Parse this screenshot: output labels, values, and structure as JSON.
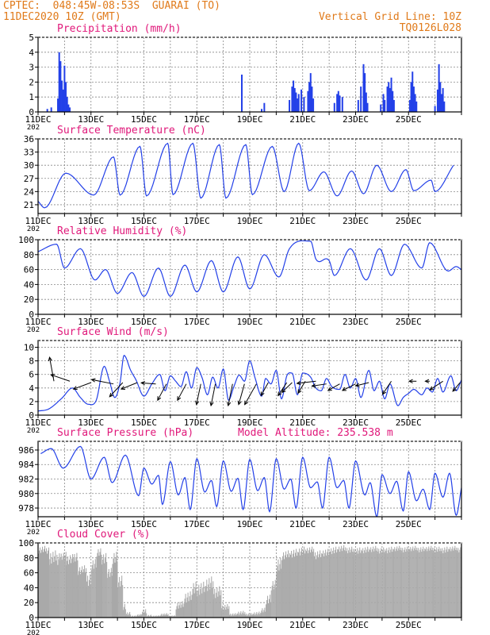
{
  "header": {
    "line1": "CPTEC:  048:45W-08:53S  GUARAI (TO)",
    "line2": "11DEC2020 10Z (GMT)",
    "grid_note": "Vertical Grid Line: 10Z",
    "code": "TQ0126L028"
  },
  "colors": {
    "header": "#e07a1a",
    "title": "#e0187a",
    "series": "#2340e8",
    "cloud": "#a9a9a9",
    "grid": "#888888"
  },
  "x_labels": [
    "11DEC",
    "13DEC",
    "15DEC",
    "17DEC",
    "19DEC",
    "21DEC",
    "23DEC",
    "25DEC"
  ],
  "x_sub": "202",
  "chart_data": [
    {
      "id": "precip",
      "type": "bar",
      "title": "Precipitation (mm/h)",
      "ylim": [
        0,
        5
      ],
      "yticks": [
        "0",
        "1",
        "2",
        "3",
        "4",
        "5"
      ],
      "x_unit": "days since 11DEC2020 10Z",
      "events": [
        [
          0.35,
          0.2
        ],
        [
          0.5,
          0.3
        ],
        [
          0.75,
          0.9
        ],
        [
          0.8,
          4.0
        ],
        [
          0.85,
          3.4
        ],
        [
          0.9,
          2.1
        ],
        [
          0.95,
          1.5
        ],
        [
          1.0,
          3.1
        ],
        [
          1.05,
          2.0
        ],
        [
          1.1,
          1.0
        ],
        [
          1.15,
          0.5
        ],
        [
          1.2,
          0.3
        ],
        [
          7.7,
          2.5
        ],
        [
          8.45,
          0.2
        ],
        [
          8.55,
          0.6
        ],
        [
          9.5,
          0.8
        ],
        [
          9.6,
          1.7
        ],
        [
          9.65,
          2.1
        ],
        [
          9.7,
          1.6
        ],
        [
          9.75,
          1.3
        ],
        [
          9.8,
          0.9
        ],
        [
          9.85,
          1.2
        ],
        [
          9.95,
          1.5
        ],
        [
          10.05,
          1.0
        ],
        [
          10.2,
          1.4
        ],
        [
          10.25,
          2.0
        ],
        [
          10.3,
          2.6
        ],
        [
          10.35,
          1.7
        ],
        [
          10.4,
          0.9
        ],
        [
          11.2,
          0.6
        ],
        [
          11.3,
          1.2
        ],
        [
          11.35,
          1.4
        ],
        [
          11.4,
          1.1
        ],
        [
          11.5,
          1.0
        ],
        [
          12.1,
          0.8
        ],
        [
          12.2,
          1.7
        ],
        [
          12.3,
          3.2
        ],
        [
          12.35,
          2.6
        ],
        [
          12.4,
          1.3
        ],
        [
          12.45,
          0.6
        ],
        [
          12.95,
          0.5
        ],
        [
          13.05,
          1.2
        ],
        [
          13.1,
          0.8
        ],
        [
          13.2,
          1.7
        ],
        [
          13.25,
          2.0
        ],
        [
          13.3,
          1.6
        ],
        [
          13.35,
          2.3
        ],
        [
          13.4,
          1.4
        ],
        [
          13.45,
          0.8
        ],
        [
          14.05,
          0.8
        ],
        [
          14.1,
          2.0
        ],
        [
          14.15,
          2.7
        ],
        [
          14.2,
          1.7
        ],
        [
          14.25,
          1.2
        ],
        [
          14.3,
          0.7
        ],
        [
          15.0,
          0.4
        ],
        [
          15.1,
          1.5
        ],
        [
          15.15,
          3.2
        ],
        [
          15.2,
          2.0
        ],
        [
          15.25,
          1.2
        ],
        [
          15.3,
          1.6
        ],
        [
          15.35,
          0.7
        ]
      ]
    },
    {
      "id": "temp",
      "type": "line",
      "title": "Surface Temperature (nC)",
      "ylim": [
        19,
        36
      ],
      "yticks": [
        "21",
        "24",
        "27",
        "30",
        "33",
        "36"
      ],
      "min_x": [
        0.0,
        0.25,
        2.1,
        3.1,
        4.1,
        5.1,
        6.15,
        7.1,
        8.1,
        9.3,
        10.25,
        11.3,
        12.3,
        13.35,
        14.2,
        15.0
      ],
      "min_y": [
        21.8,
        20.3,
        23.2,
        23.2,
        23.0,
        23.3,
        22.5,
        22.5,
        23.3,
        24.0,
        24.2,
        23.0,
        23.5,
        24.0,
        24.2,
        24.0
      ],
      "max_x": [
        1.05,
        2.85,
        3.85,
        4.9,
        5.85,
        6.85,
        7.85,
        8.85,
        9.85,
        10.8,
        11.85,
        12.8,
        13.9,
        14.85,
        15.7
      ],
      "max_y": [
        28.2,
        31.9,
        34.3,
        35.0,
        35.0,
        34.7,
        34.7,
        34.3,
        35.0,
        28.5,
        28.7,
        30.0,
        29.0,
        26.6,
        30.0
      ]
    },
    {
      "id": "rh",
      "type": "line",
      "title": "Relative Humidity (%)",
      "ylim": [
        0,
        100
      ],
      "yticks": [
        "0",
        "20",
        "40",
        "60",
        "80",
        "100"
      ],
      "min_x": [
        0.0,
        1.0,
        2.15,
        3.0,
        4.0,
        5.0,
        6.0,
        7.0,
        8.0,
        9.1,
        10.5,
        11.2,
        12.4,
        13.35,
        14.5,
        15.5,
        16.0
      ],
      "min_y": [
        84.0,
        62.0,
        46.0,
        28.0,
        24.0,
        24.0,
        30.0,
        30.0,
        34.0,
        50.0,
        74.0,
        52.0,
        46.0,
        52.0,
        62.0,
        58.0,
        60.0
      ],
      "max_x": [
        0.7,
        1.6,
        2.55,
        3.55,
        4.55,
        5.55,
        6.55,
        7.55,
        8.55,
        9.5,
        10.3,
        11.0,
        11.8,
        12.9,
        13.85,
        14.8,
        15.8
      ],
      "max_y": [
        94.0,
        88.0,
        60.0,
        56.0,
        62.0,
        66.0,
        72.0,
        77.0,
        80.0,
        88.0,
        98.0,
        72.0,
        88.0,
        88.0,
        94.0,
        96.0,
        64.0
      ]
    },
    {
      "id": "wind",
      "type": "line",
      "title": "Surface Wind (m/s)",
      "ylim": [
        0,
        11
      ],
      "yticks": [
        "0",
        "2",
        "4",
        "6",
        "8",
        "10"
      ],
      "speed_x": [
        0.0,
        0.4,
        0.9,
        1.3,
        1.6,
        1.9,
        2.2,
        2.5,
        2.7,
        2.9,
        3.1,
        3.25,
        3.5,
        3.7,
        4.0,
        4.3,
        4.6,
        4.8,
        5.0,
        5.2,
        5.4,
        5.6,
        5.8,
        6.0,
        6.2,
        6.4,
        6.6,
        6.8,
        7.0,
        7.2,
        7.4,
        7.6,
        7.8,
        8.0,
        8.2,
        8.45,
        8.6,
        8.8,
        9.0,
        9.2,
        9.4,
        9.6,
        9.8,
        10.0,
        10.3,
        10.5,
        10.7,
        10.9,
        11.1,
        11.4,
        11.6,
        11.8,
        12.0,
        12.2,
        12.5,
        12.7,
        12.9,
        13.1,
        13.3,
        13.6,
        13.8,
        14.0,
        14.2,
        14.5,
        14.7,
        14.9,
        15.1,
        15.3,
        15.6,
        15.8,
        16.0
      ],
      "speed_y": [
        0.6,
        0.9,
        2.5,
        4.0,
        2.6,
        1.6,
        2.2,
        7.2,
        5.0,
        2.6,
        4.8,
        8.8,
        6.6,
        5.2,
        2.8,
        4.6,
        6.0,
        3.6,
        5.8,
        5.0,
        4.2,
        6.4,
        4.0,
        7.0,
        5.5,
        3.0,
        5.6,
        4.0,
        6.8,
        2.2,
        4.2,
        5.9,
        5.0,
        8.0,
        5.5,
        2.8,
        5.4,
        4.6,
        6.6,
        2.4,
        5.8,
        6.2,
        3.0,
        6.2,
        5.6,
        4.0,
        3.6,
        5.4,
        4.2,
        3.8,
        6.0,
        4.0,
        5.4,
        2.6,
        6.6,
        3.6,
        5.0,
        2.4,
        4.6,
        1.4,
        2.6,
        3.2,
        3.8,
        3.0,
        4.0,
        3.4,
        5.4,
        3.4,
        5.8,
        3.6,
        5.2
      ],
      "arrows": [
        [
          0.6,
          5.0,
          -0.3,
          2.2
        ],
        [
          1.2,
          5.0,
          -1.3,
          0.6
        ],
        [
          2.0,
          4.8,
          -1.2,
          -0.6
        ],
        [
          2.85,
          4.6,
          -1.5,
          0.4
        ],
        [
          3.2,
          4.8,
          -0.9,
          -1.3
        ],
        [
          3.75,
          4.8,
          -1.1,
          -0.6
        ],
        [
          4.45,
          4.6,
          -1.0,
          0.1
        ],
        [
          4.85,
          4.6,
          -0.6,
          -1.5
        ],
        [
          5.6,
          4.6,
          -0.6,
          -1.5
        ],
        [
          6.15,
          4.6,
          -0.3,
          -1.9
        ],
        [
          6.7,
          4.6,
          -0.3,
          -2.0
        ],
        [
          7.35,
          4.6,
          -0.3,
          -2.0
        ],
        [
          7.8,
          4.6,
          -0.4,
          -1.9
        ],
        [
          8.25,
          4.6,
          -0.8,
          -1.9
        ],
        [
          8.7,
          4.8,
          -0.5,
          -1.2
        ],
        [
          9.4,
          4.8,
          -0.6,
          -1.2
        ],
        [
          9.6,
          4.8,
          -0.7,
          -0.9
        ],
        [
          10.1,
          5.0,
          -0.5,
          -1.1
        ],
        [
          10.5,
          5.0,
          -1.3,
          -0.2
        ],
        [
          10.9,
          4.6,
          -1.0,
          -0.2
        ],
        [
          11.4,
          4.6,
          -0.8,
          -0.6
        ],
        [
          12.0,
          4.6,
          -0.9,
          -0.6
        ],
        [
          12.5,
          4.8,
          -0.9,
          -0.3
        ],
        [
          13.35,
          5.0,
          -0.6,
          -1.2
        ],
        [
          14.3,
          5.0,
          -0.5,
          0.0
        ],
        [
          14.8,
          5.0,
          -0.3,
          0.0
        ],
        [
          15.3,
          5.0,
          -0.9,
          -0.8
        ],
        [
          15.95,
          4.8,
          -0.5,
          -0.8
        ]
      ]
    },
    {
      "id": "pres",
      "type": "line",
      "title": "Surface Pressure (hPa)",
      "subtitle": "Model Altitude: 235.538 m",
      "ylim": [
        976.8,
        987.2
      ],
      "yticks": [
        "978",
        "980",
        "982",
        "984",
        "986"
      ],
      "min_x": [
        0.1,
        0.95,
        2.0,
        2.8,
        3.8,
        4.3,
        4.7,
        5.3,
        5.75,
        6.3,
        6.75,
        7.3,
        7.75,
        8.3,
        8.75,
        9.3,
        9.75,
        10.3,
        10.75,
        11.3,
        11.75,
        12.35,
        12.8,
        13.3,
        13.8,
        14.3,
        14.8,
        15.3,
        15.8
      ],
      "min_y": [
        985.5,
        983.5,
        982.0,
        981.5,
        979.7,
        981.3,
        978.5,
        979.8,
        977.8,
        980.2,
        978.2,
        980.3,
        977.8,
        980.4,
        977.5,
        980.6,
        978.0,
        980.8,
        978.0,
        980.8,
        978.0,
        979.8,
        976.8,
        980.0,
        977.6,
        979.0,
        977.8,
        979.5,
        977.0
      ],
      "max_x": [
        0.5,
        1.6,
        2.5,
        3.3,
        4.0,
        4.55,
        5.0,
        5.55,
        6.0,
        6.55,
        7.0,
        7.55,
        8.0,
        8.55,
        9.0,
        9.55,
        10.0,
        10.55,
        11.0,
        11.55,
        12.0,
        12.55,
        13.0,
        13.55,
        14.0,
        14.55,
        15.0,
        15.55,
        16.0
      ],
      "max_y": [
        986.2,
        986.5,
        985.0,
        985.3,
        983.5,
        982.5,
        984.4,
        982.2,
        984.8,
        981.8,
        984.5,
        982.1,
        984.7,
        982.2,
        984.8,
        982.0,
        985.0,
        981.6,
        985.0,
        981.8,
        984.5,
        981.5,
        982.6,
        981.7,
        983.0,
        980.6,
        982.8,
        982.8,
        980.8
      ]
    },
    {
      "id": "cloud",
      "type": "bar",
      "title": "Cloud Cover (%)",
      "ylim": [
        0,
        100
      ],
      "yticks": [
        "0",
        "20",
        "40",
        "60",
        "80",
        "100"
      ],
      "segments": [
        [
          0.0,
          0.4,
          96,
          80
        ],
        [
          0.4,
          0.8,
          90,
          60
        ],
        [
          0.8,
          1.05,
          88,
          70
        ],
        [
          1.05,
          1.3,
          85,
          62
        ],
        [
          1.3,
          1.5,
          88,
          66
        ],
        [
          1.5,
          1.8,
          70,
          50
        ],
        [
          1.8,
          2.0,
          60,
          30
        ],
        [
          2.0,
          2.2,
          80,
          55
        ],
        [
          2.2,
          2.4,
          94,
          75
        ],
        [
          2.4,
          2.6,
          88,
          62
        ],
        [
          2.6,
          2.8,
          68,
          45
        ],
        [
          2.8,
          3.0,
          90,
          62
        ],
        [
          3.0,
          3.2,
          58,
          30
        ],
        [
          3.2,
          3.3,
          20,
          5
        ],
        [
          3.3,
          3.5,
          8,
          0
        ],
        [
          3.5,
          3.7,
          3,
          0
        ],
        [
          3.7,
          3.9,
          5,
          0
        ],
        [
          3.9,
          4.1,
          12,
          0
        ],
        [
          4.1,
          4.3,
          4,
          0
        ],
        [
          4.3,
          4.6,
          3,
          0
        ],
        [
          4.6,
          4.9,
          6,
          0
        ],
        [
          4.9,
          5.2,
          3,
          0
        ],
        [
          5.2,
          5.5,
          22,
          5
        ],
        [
          5.5,
          5.8,
          35,
          10
        ],
        [
          5.8,
          6.0,
          50,
          20
        ],
        [
          6.0,
          6.3,
          48,
          18
        ],
        [
          6.3,
          6.6,
          55,
          22
        ],
        [
          6.6,
          6.9,
          42,
          15
        ],
        [
          6.9,
          7.2,
          18,
          4
        ],
        [
          7.2,
          7.5,
          6,
          0
        ],
        [
          7.5,
          7.8,
          9,
          0
        ],
        [
          7.8,
          8.1,
          6,
          0
        ],
        [
          8.1,
          8.4,
          8,
          0
        ],
        [
          8.4,
          8.6,
          14,
          2
        ],
        [
          8.6,
          8.8,
          32,
          10
        ],
        [
          8.8,
          9.0,
          52,
          28
        ],
        [
          9.0,
          9.2,
          82,
          50
        ],
        [
          9.2,
          9.5,
          90,
          70
        ],
        [
          9.5,
          9.8,
          92,
          72
        ],
        [
          9.8,
          10.1,
          95,
          75
        ],
        [
          10.1,
          10.4,
          95,
          80
        ],
        [
          10.4,
          10.7,
          90,
          70
        ],
        [
          10.7,
          11.0,
          92,
          75
        ],
        [
          11.0,
          11.3,
          95,
          78
        ],
        [
          11.3,
          11.6,
          97,
          82
        ],
        [
          11.6,
          11.9,
          95,
          80
        ],
        [
          11.9,
          12.2,
          94,
          78
        ],
        [
          12.2,
          12.5,
          95,
          80
        ],
        [
          12.5,
          12.8,
          96,
          82
        ],
        [
          12.8,
          13.1,
          94,
          80
        ],
        [
          13.1,
          13.4,
          95,
          80
        ],
        [
          13.4,
          13.7,
          96,
          84
        ],
        [
          13.7,
          14.0,
          95,
          82
        ],
        [
          14.0,
          14.3,
          96,
          84
        ],
        [
          14.3,
          14.6,
          95,
          82
        ],
        [
          14.6,
          14.9,
          96,
          84
        ],
        [
          14.9,
          15.2,
          95,
          82
        ],
        [
          15.2,
          15.5,
          95,
          80
        ],
        [
          15.5,
          15.8,
          96,
          84
        ],
        [
          15.8,
          16.0,
          95,
          82
        ]
      ]
    }
  ]
}
